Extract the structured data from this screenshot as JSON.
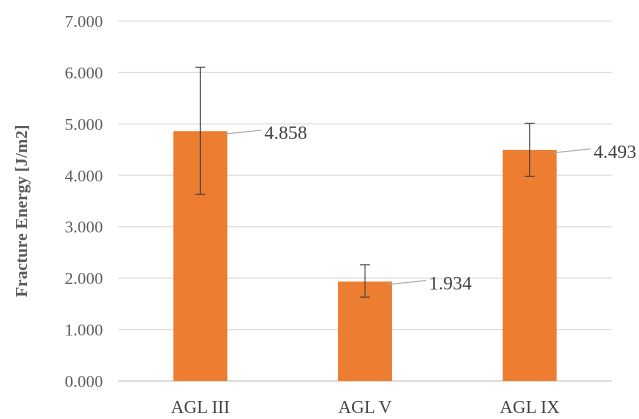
{
  "chart_data": {
    "type": "bar",
    "categories": [
      "AGL III",
      "AGL V",
      "AGL IX"
    ],
    "values": [
      4.858,
      1.934,
      4.493
    ],
    "data_labels": [
      "4.858",
      "1.934",
      "4.493"
    ],
    "error_low": [
      3.63,
      1.63,
      3.98
    ],
    "error_high": [
      6.1,
      2.26,
      5.01
    ],
    "title": "",
    "xlabel": "",
    "ylabel": "Fracture Energy [J/m2]",
    "ylim": [
      0,
      7
    ],
    "yticks": [
      0,
      1,
      2,
      3,
      4,
      5,
      6,
      7
    ],
    "ytick_labels": [
      "0.000",
      "1.000",
      "2.000",
      "3.000",
      "4.000",
      "5.000",
      "6.000",
      "7.000"
    ],
    "grid": true,
    "legend": "none",
    "colors": {
      "bar": "#ED7D31",
      "grid": "#D9D9D9",
      "axis": "#BFBFBF",
      "error_bar": "#404040",
      "leader_line": "#A6A6A6"
    }
  }
}
